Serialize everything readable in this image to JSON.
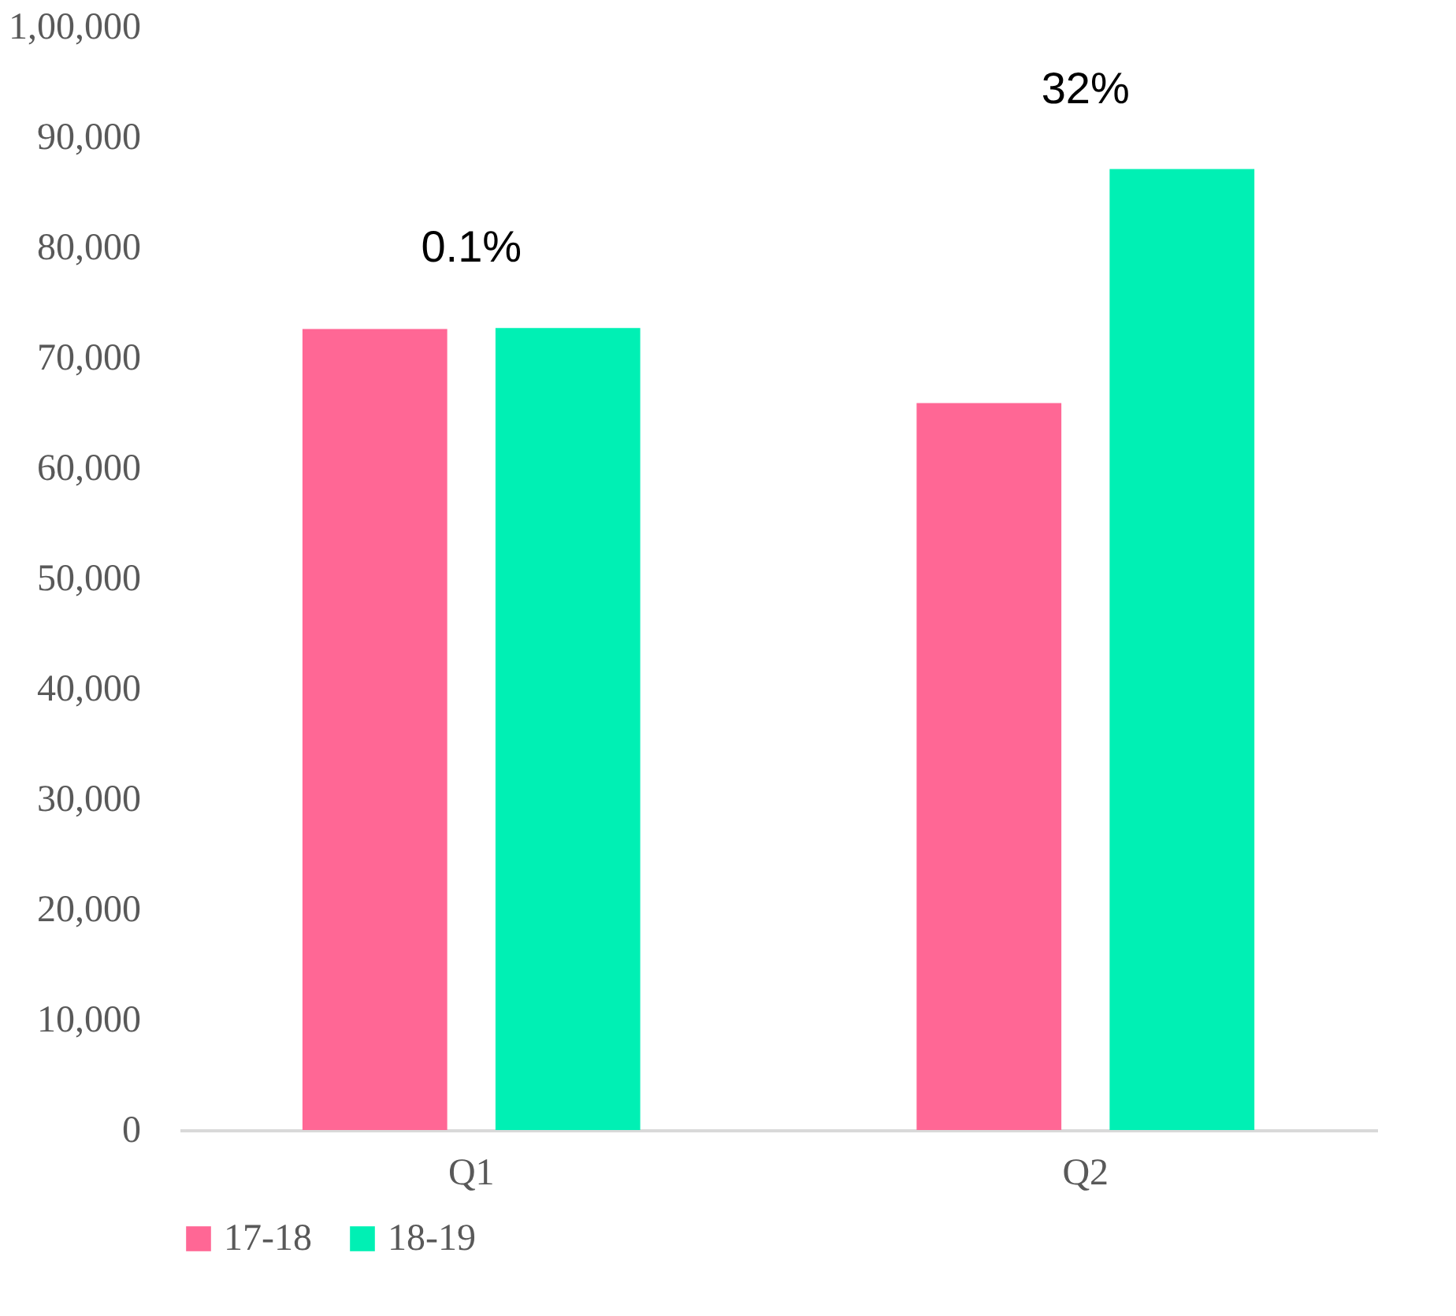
{
  "chart_data": {
    "type": "bar",
    "categories": [
      "Q1",
      "Q2"
    ],
    "series": [
      {
        "name": "17-18",
        "color": "#ff6795",
        "values": [
          72600,
          65900
        ]
      },
      {
        "name": "18-19",
        "color": "#00f0b4",
        "values": [
          72700,
          87100
        ]
      }
    ],
    "ylim": [
      0,
      100000
    ],
    "yticks": [
      {
        "value": 0,
        "label": "0"
      },
      {
        "value": 10000,
        "label": "10,000"
      },
      {
        "value": 20000,
        "label": "20,000"
      },
      {
        "value": 30000,
        "label": "30,000"
      },
      {
        "value": 40000,
        "label": "40,000"
      },
      {
        "value": 50000,
        "label": "50,000"
      },
      {
        "value": 60000,
        "label": "60,000"
      },
      {
        "value": 70000,
        "label": "70,000"
      },
      {
        "value": 80000,
        "label": "80,000"
      },
      {
        "value": 90000,
        "label": "90,000"
      },
      {
        "value": 100000,
        "label": "1,00,000"
      }
    ],
    "annotations": [
      "0.1%",
      "32%"
    ],
    "grid": false,
    "legend": "bottom"
  }
}
